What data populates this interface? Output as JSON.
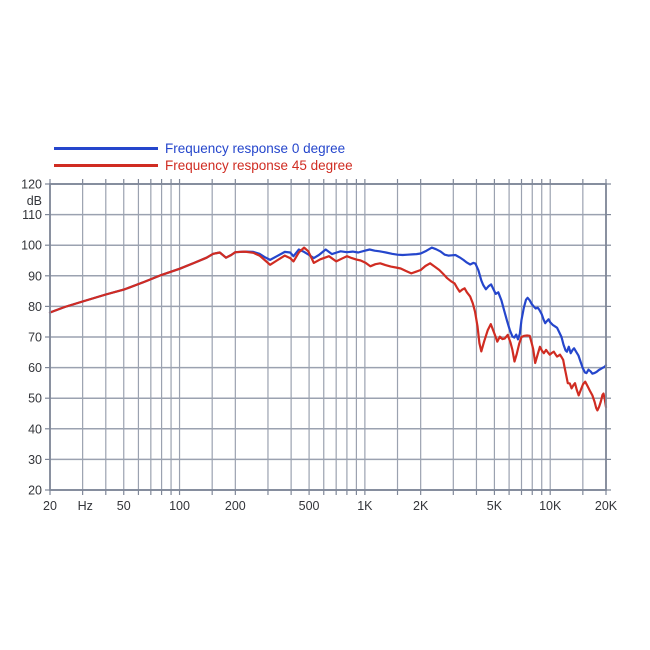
{
  "legend": {
    "items": [
      {
        "label": "Frequency response 0 degree",
        "color": "#2546cc"
      },
      {
        "label": "Frequency response 45 degree",
        "color": "#d02c22"
      }
    ]
  },
  "chart_data": {
    "type": "line",
    "title": "",
    "x_axis": {
      "label": "Hz",
      "scale": "log",
      "min": 20,
      "max": 20000,
      "gridlines": [
        20,
        30,
        40,
        50,
        60,
        70,
        80,
        90,
        100,
        150,
        200,
        300,
        400,
        500,
        600,
        700,
        800,
        900,
        1000,
        1500,
        2000,
        3000,
        4000,
        5000,
        6000,
        7000,
        8000,
        9000,
        10000,
        15000,
        20000
      ],
      "tick_labels": [
        {
          "f": 20,
          "text": "20"
        },
        {
          "f": 31,
          "text": "Hz"
        },
        {
          "f": 50,
          "text": "50"
        },
        {
          "f": 100,
          "text": "100"
        },
        {
          "f": 200,
          "text": "200"
        },
        {
          "f": 500,
          "text": "500"
        },
        {
          "f": 1000,
          "text": "1K"
        },
        {
          "f": 2000,
          "text": "2K"
        },
        {
          "f": 5000,
          "text": "5K"
        },
        {
          "f": 10000,
          "text": "10K"
        },
        {
          "f": 20000,
          "text": "20K"
        }
      ]
    },
    "y_axis": {
      "label": "dB",
      "min": 20,
      "max": 120,
      "step": 10,
      "gridlines": [
        20,
        30,
        40,
        50,
        60,
        70,
        80,
        90,
        100,
        110,
        120
      ],
      "tick_labels": [
        {
          "v": 120,
          "text": "120"
        },
        {
          "v": 114.6,
          "text": "dB"
        },
        {
          "v": 110,
          "text": "110"
        },
        {
          "v": 100,
          "text": "100"
        },
        {
          "v": 90,
          "text": "90"
        },
        {
          "v": 80,
          "text": "80"
        },
        {
          "v": 70,
          "text": "70"
        },
        {
          "v": 60,
          "text": "60"
        },
        {
          "v": 50,
          "text": "50"
        },
        {
          "v": 40,
          "text": "40"
        },
        {
          "v": 30,
          "text": "30"
        },
        {
          "v": 20,
          "text": "20"
        }
      ]
    },
    "colors": {
      "grid": "#9ba2b0",
      "border": "#7f8798",
      "text": "#33353a",
      "background": "#ffffff"
    },
    "series": [
      {
        "name": "Frequency response 0 degree",
        "color": "#2546cc",
        "points": [
          [
            20,
            78.0
          ],
          [
            24,
            79.8
          ],
          [
            30,
            81.6
          ],
          [
            40,
            83.9
          ],
          [
            50,
            85.5
          ],
          [
            65,
            88.1
          ],
          [
            80,
            90.3
          ],
          [
            100,
            92.3
          ],
          [
            120,
            94.2
          ],
          [
            140,
            95.9
          ],
          [
            152,
            97.2
          ],
          [
            165,
            97.6
          ],
          [
            178,
            95.9
          ],
          [
            190,
            96.8
          ],
          [
            200,
            97.7
          ],
          [
            225,
            97.9
          ],
          [
            250,
            97.8
          ],
          [
            270,
            97.2
          ],
          [
            290,
            96.0
          ],
          [
            308,
            95.2
          ],
          [
            335,
            96.4
          ],
          [
            370,
            97.8
          ],
          [
            395,
            97.6
          ],
          [
            412,
            96.4
          ],
          [
            440,
            98.6
          ],
          [
            470,
            97.8
          ],
          [
            500,
            96.8
          ],
          [
            530,
            95.8
          ],
          [
            565,
            96.8
          ],
          [
            615,
            98.6
          ],
          [
            665,
            97.1
          ],
          [
            705,
            97.6
          ],
          [
            740,
            98.0
          ],
          [
            800,
            97.7
          ],
          [
            860,
            97.9
          ],
          [
            920,
            97.6
          ],
          [
            1000,
            98.2
          ],
          [
            1060,
            98.6
          ],
          [
            1130,
            98.2
          ],
          [
            1200,
            98.0
          ],
          [
            1300,
            97.6
          ],
          [
            1400,
            97.2
          ],
          [
            1500,
            96.9
          ],
          [
            1600,
            96.8
          ],
          [
            1700,
            96.9
          ],
          [
            1800,
            97.0
          ],
          [
            1900,
            97.1
          ],
          [
            2000,
            97.3
          ],
          [
            2150,
            98.2
          ],
          [
            2300,
            99.2
          ],
          [
            2420,
            98.7
          ],
          [
            2550,
            98.0
          ],
          [
            2700,
            96.9
          ],
          [
            2820,
            96.6
          ],
          [
            2950,
            96.7
          ],
          [
            3080,
            96.8
          ],
          [
            3250,
            96.0
          ],
          [
            3400,
            95.2
          ],
          [
            3550,
            94.3
          ],
          [
            3700,
            93.7
          ],
          [
            3850,
            94.2
          ],
          [
            3950,
            94.0
          ],
          [
            4100,
            91.8
          ],
          [
            4250,
            88.5
          ],
          [
            4350,
            87.0
          ],
          [
            4500,
            85.6
          ],
          [
            4650,
            86.6
          ],
          [
            4800,
            87.2
          ],
          [
            4950,
            85.5
          ],
          [
            5080,
            84.1
          ],
          [
            5250,
            84.6
          ],
          [
            5450,
            82.0
          ],
          [
            5650,
            78.5
          ],
          [
            5850,
            75.2
          ],
          [
            6050,
            72.3
          ],
          [
            6250,
            70.2
          ],
          [
            6400,
            69.8
          ],
          [
            6550,
            70.8
          ],
          [
            6700,
            69.2
          ],
          [
            6850,
            71.0
          ],
          [
            7000,
            75.6
          ],
          [
            7200,
            79.5
          ],
          [
            7400,
            82.2
          ],
          [
            7550,
            82.8
          ],
          [
            7750,
            82.0
          ],
          [
            7950,
            80.8
          ],
          [
            8150,
            80.0
          ],
          [
            8350,
            79.3
          ],
          [
            8550,
            79.6
          ],
          [
            8750,
            78.8
          ],
          [
            9000,
            77.5
          ],
          [
            9200,
            75.8
          ],
          [
            9400,
            74.5
          ],
          [
            9600,
            75.2
          ],
          [
            9800,
            75.8
          ],
          [
            10000,
            74.8
          ],
          [
            10300,
            74.0
          ],
          [
            10600,
            73.5
          ],
          [
            10900,
            73.0
          ],
          [
            11200,
            71.5
          ],
          [
            11500,
            70.0
          ],
          [
            11800,
            67.5
          ],
          [
            12100,
            65.6
          ],
          [
            12300,
            65.2
          ],
          [
            12600,
            66.8
          ],
          [
            12900,
            64.7
          ],
          [
            13200,
            65.8
          ],
          [
            13450,
            66.3
          ],
          [
            13800,
            65.2
          ],
          [
            14200,
            64.0
          ],
          [
            14600,
            61.8
          ],
          [
            15000,
            59.8
          ],
          [
            15400,
            58.4
          ],
          [
            15700,
            58.2
          ],
          [
            16100,
            59.3
          ],
          [
            16500,
            58.8
          ],
          [
            16900,
            58.0
          ],
          [
            17300,
            58.2
          ],
          [
            17800,
            58.6
          ],
          [
            18300,
            59.2
          ],
          [
            18800,
            59.6
          ],
          [
            19300,
            60.0
          ],
          [
            19700,
            60.3
          ],
          [
            20000,
            60.8
          ]
        ]
      },
      {
        "name": "Frequency response 45 degree",
        "color": "#d02c22",
        "points": [
          [
            20,
            78.0
          ],
          [
            24,
            79.8
          ],
          [
            30,
            81.6
          ],
          [
            40,
            83.9
          ],
          [
            50,
            85.5
          ],
          [
            65,
            88.1
          ],
          [
            80,
            90.3
          ],
          [
            100,
            92.3
          ],
          [
            120,
            94.2
          ],
          [
            140,
            95.9
          ],
          [
            152,
            97.2
          ],
          [
            165,
            97.6
          ],
          [
            178,
            95.9
          ],
          [
            190,
            96.8
          ],
          [
            200,
            97.7
          ],
          [
            225,
            97.9
          ],
          [
            250,
            97.5
          ],
          [
            270,
            96.6
          ],
          [
            290,
            95.0
          ],
          [
            308,
            93.6
          ],
          [
            335,
            95.0
          ],
          [
            370,
            96.6
          ],
          [
            395,
            95.8
          ],
          [
            412,
            94.7
          ],
          [
            440,
            97.6
          ],
          [
            470,
            99.2
          ],
          [
            495,
            98.0
          ],
          [
            530,
            94.2
          ],
          [
            575,
            95.4
          ],
          [
            640,
            96.4
          ],
          [
            700,
            94.7
          ],
          [
            750,
            95.6
          ],
          [
            800,
            96.4
          ],
          [
            850,
            95.8
          ],
          [
            900,
            95.3
          ],
          [
            950,
            95.0
          ],
          [
            1010,
            94.2
          ],
          [
            1070,
            93.1
          ],
          [
            1140,
            93.8
          ],
          [
            1210,
            94.1
          ],
          [
            1290,
            93.5
          ],
          [
            1380,
            93.0
          ],
          [
            1470,
            92.7
          ],
          [
            1560,
            92.4
          ],
          [
            1660,
            91.6
          ],
          [
            1780,
            90.8
          ],
          [
            1880,
            91.3
          ],
          [
            2000,
            91.9
          ],
          [
            2120,
            93.2
          ],
          [
            2250,
            94.1
          ],
          [
            2380,
            93.0
          ],
          [
            2520,
            91.9
          ],
          [
            2650,
            90.6
          ],
          [
            2780,
            89.2
          ],
          [
            2920,
            88.2
          ],
          [
            3050,
            87.5
          ],
          [
            3150,
            86.0
          ],
          [
            3250,
            84.8
          ],
          [
            3350,
            85.5
          ],
          [
            3450,
            85.9
          ],
          [
            3550,
            84.6
          ],
          [
            3700,
            83.2
          ],
          [
            3820,
            81.0
          ],
          [
            3930,
            78.3
          ],
          [
            4050,
            73.5
          ],
          [
            4150,
            68.0
          ],
          [
            4250,
            65.3
          ],
          [
            4400,
            68.5
          ],
          [
            4600,
            72.2
          ],
          [
            4780,
            74.2
          ],
          [
            4900,
            72.5
          ],
          [
            5030,
            70.7
          ],
          [
            5180,
            68.5
          ],
          [
            5350,
            70.1
          ],
          [
            5520,
            69.3
          ],
          [
            5680,
            69.5
          ],
          [
            5900,
            70.7
          ],
          [
            6100,
            68.3
          ],
          [
            6250,
            65.8
          ],
          [
            6420,
            62.0
          ],
          [
            6600,
            64.5
          ],
          [
            6800,
            67.8
          ],
          [
            7000,
            70.0
          ],
          [
            7250,
            70.4
          ],
          [
            7500,
            70.5
          ],
          [
            7750,
            70.4
          ],
          [
            7950,
            68.0
          ],
          [
            8100,
            66.0
          ],
          [
            8300,
            61.5
          ],
          [
            8550,
            64.2
          ],
          [
            8800,
            66.8
          ],
          [
            9050,
            65.4
          ],
          [
            9250,
            64.7
          ],
          [
            9500,
            65.8
          ],
          [
            9700,
            65.0
          ],
          [
            9950,
            64.2
          ],
          [
            10200,
            64.8
          ],
          [
            10450,
            65.2
          ],
          [
            10700,
            64.2
          ],
          [
            10900,
            63.6
          ],
          [
            11100,
            63.9
          ],
          [
            11300,
            64.2
          ],
          [
            11550,
            63.3
          ],
          [
            11750,
            62.5
          ],
          [
            11950,
            60.2
          ],
          [
            12150,
            58.0
          ],
          [
            12450,
            54.9
          ],
          [
            12750,
            54.8
          ],
          [
            13050,
            53.2
          ],
          [
            13350,
            54.3
          ],
          [
            13600,
            54.9
          ],
          [
            13900,
            52.8
          ],
          [
            14250,
            50.9
          ],
          [
            14650,
            52.8
          ],
          [
            15050,
            54.6
          ],
          [
            15450,
            55.4
          ],
          [
            15900,
            54.0
          ],
          [
            16350,
            52.5
          ],
          [
            16900,
            50.9
          ],
          [
            17350,
            48.8
          ],
          [
            17700,
            46.8
          ],
          [
            17980,
            46.0
          ],
          [
            18350,
            47.2
          ],
          [
            18750,
            48.9
          ],
          [
            19150,
            51.1
          ],
          [
            19400,
            51.5
          ],
          [
            19650,
            50.0
          ],
          [
            19850,
            48.4
          ],
          [
            20000,
            47.1
          ]
        ]
      }
    ]
  }
}
